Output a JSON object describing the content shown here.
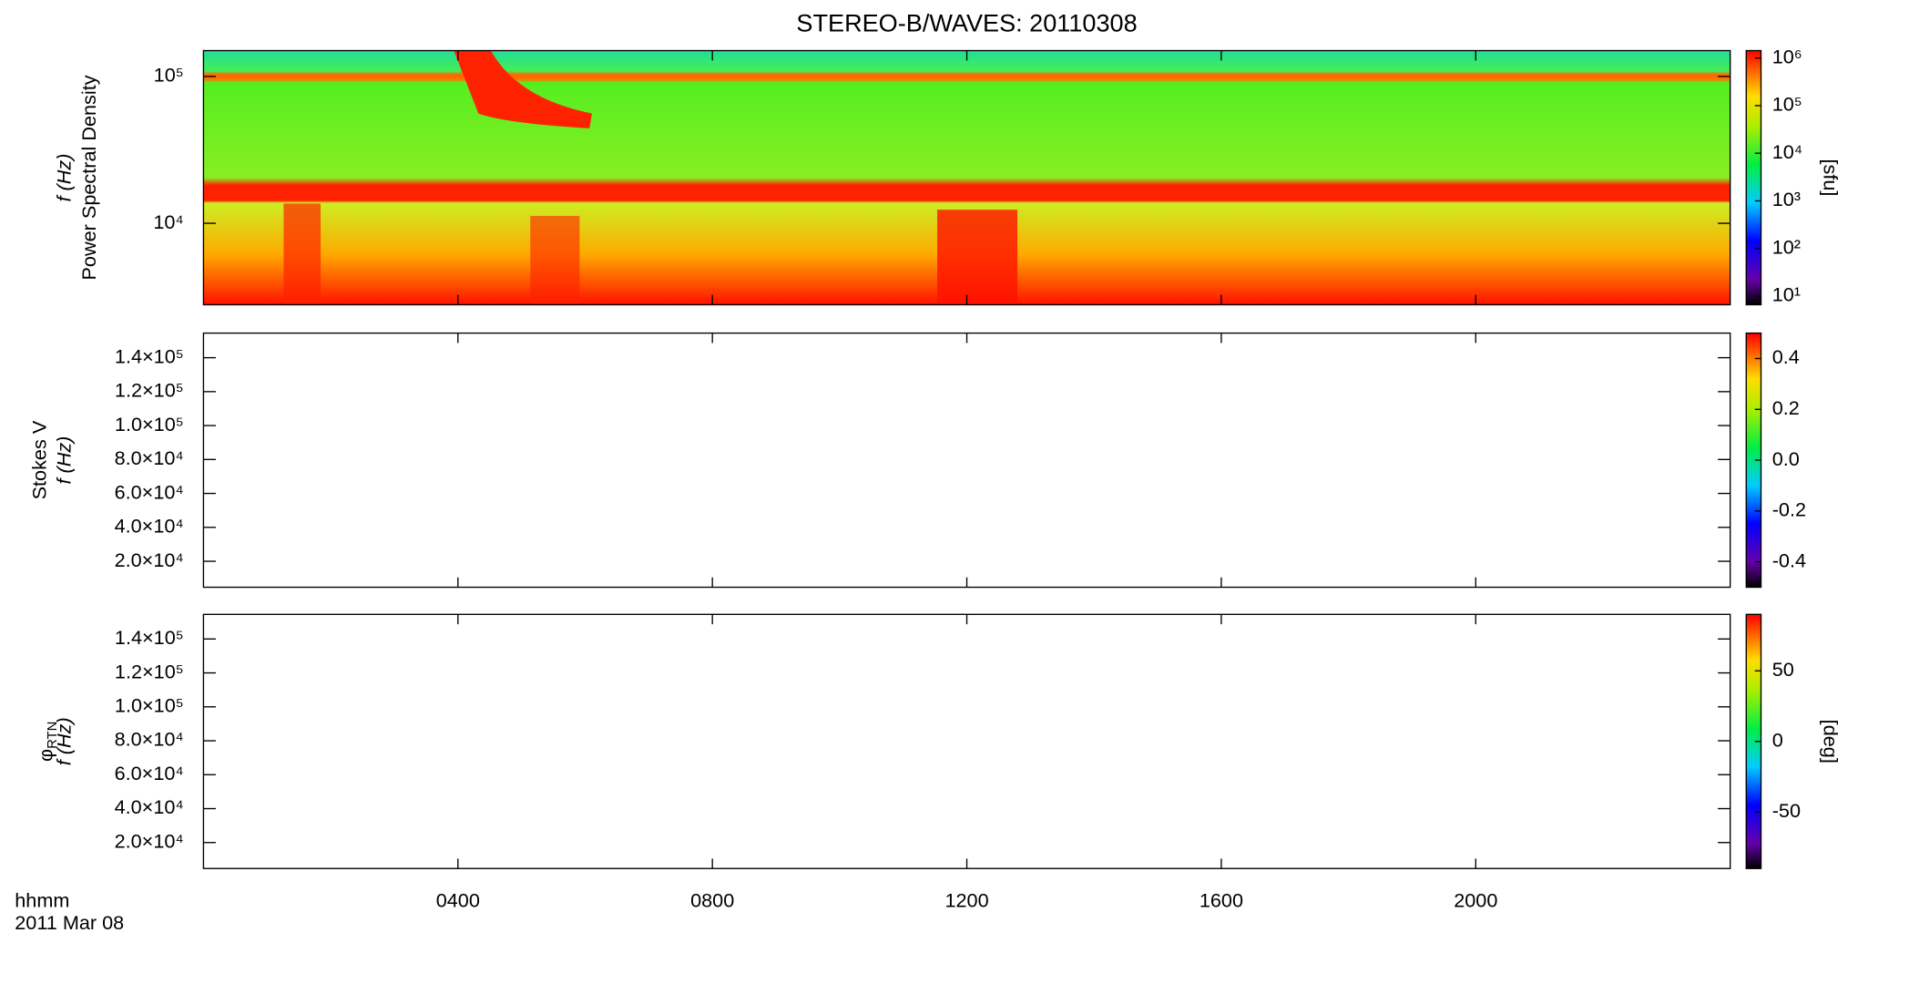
{
  "chart_data": [
    {
      "type": "spectrogram",
      "title": "STEREO-B/WAVES: 20110308",
      "ylabel": "Power Spectral Density",
      "ylabel2": "f (Hz)",
      "yscale": "log",
      "ylim": [
        2790,
        150000
      ],
      "yticks": [
        {
          "value": 10000,
          "label": "10⁴"
        },
        {
          "value": 100000,
          "label": "10⁵"
        }
      ],
      "colorbar": {
        "label": "[sfu]",
        "scale": "log",
        "lim": [
          6.6,
          1430000
        ],
        "ticks": [
          {
            "value": 10,
            "label": "10¹"
          },
          {
            "value": 100,
            "label": "10²"
          },
          {
            "value": 1000,
            "label": "10³"
          },
          {
            "value": 10000,
            "label": "10⁴"
          },
          {
            "value": 100000,
            "label": "10⁵"
          },
          {
            "value": 1000000,
            "label": "10⁶"
          }
        ]
      }
    },
    {
      "type": "spectrogram",
      "ylabel": "Stokes V",
      "ylabel2": "f (Hz)",
      "yscale": "linear",
      "ylim": [
        4700,
        154500
      ],
      "yticks": [
        {
          "value": 20000,
          "label": "2.0×10⁴"
        },
        {
          "value": 40000,
          "label": "4.0×10⁴"
        },
        {
          "value": 60000,
          "label": "6.0×10⁴"
        },
        {
          "value": 80000,
          "label": "8.0×10⁴"
        },
        {
          "value": 100000,
          "label": "1.0×10⁵"
        },
        {
          "value": 120000,
          "label": "1.2×10⁵"
        },
        {
          "value": 140000,
          "label": "1.4×10⁵"
        }
      ],
      "colorbar": {
        "scale": "linear",
        "lim": [
          -0.5,
          0.5
        ],
        "ticks": [
          -0.4,
          -0.2,
          {
            "value": 0,
            "label": "0.0"
          },
          0.2,
          0.4
        ]
      }
    },
    {
      "type": "spectrogram",
      "ylabel": "φ",
      "ylabel_sub": "RTN",
      "ylabel2": "f (Hz)",
      "yscale": "linear",
      "ylim": [
        4700,
        154500
      ],
      "yticks": [
        {
          "value": 20000,
          "label": "2.0×10⁴"
        },
        {
          "value": 40000,
          "label": "4.0×10⁴"
        },
        {
          "value": 60000,
          "label": "6.0×10⁴"
        },
        {
          "value": 80000,
          "label": "8.0×10⁴"
        },
        {
          "value": 100000,
          "label": "1.0×10⁵"
        },
        {
          "value": 120000,
          "label": "1.2×10⁵"
        },
        {
          "value": 140000,
          "label": "1.4×10⁵"
        }
      ],
      "colorbar": {
        "label": "[deg]",
        "scale": "linear",
        "lim": [
          -90,
          90
        ],
        "ticks": [
          -50,
          0,
          50
        ]
      },
      "xlim": [
        0,
        24
      ],
      "xticks": [
        {
          "value": 4,
          "label": "0400"
        },
        {
          "value": 8,
          "label": "0800"
        },
        {
          "value": 12,
          "label": "1200"
        },
        {
          "value": 16,
          "label": "1600"
        },
        {
          "value": 20,
          "label": "2000"
        }
      ],
      "xlabel": "hhmm",
      "date": "2011 Mar 08"
    }
  ]
}
